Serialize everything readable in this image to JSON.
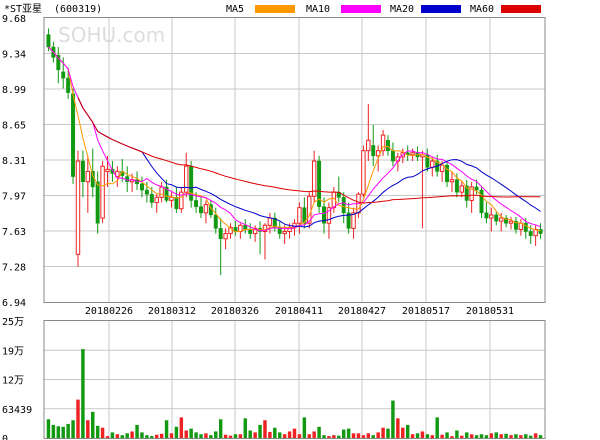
{
  "title": "*ST亚星",
  "code": "(600319)",
  "watermark": "SOHU.com",
  "legend": [
    {
      "name": "MA5",
      "color": "#FF9900"
    },
    {
      "name": "MA10",
      "color": "#FF00FF"
    },
    {
      "name": "MA20",
      "color": "#0000CC"
    },
    {
      "name": "MA60",
      "color": "#DD0000"
    }
  ],
  "price_axis": {
    "labels": [
      "9.68",
      "9.34",
      "8.99",
      "8.65",
      "8.31",
      "7.97",
      "7.63",
      "7.28",
      "6.94"
    ]
  },
  "volume_axis": {
    "labels": [
      "25万",
      "19万",
      "12万",
      "63439",
      "0"
    ]
  },
  "date_labels": [
    "20180226",
    "20180312",
    "20180326",
    "20180411",
    "20180427",
    "20180517",
    "20180531"
  ],
  "colors": {
    "up": "#EE2222",
    "down": "#119911",
    "grid": "#C8C8C8",
    "frame": "#888888"
  },
  "chart_data": {
    "type": "candlestick",
    "ylim": [
      6.94,
      9.68
    ],
    "volume_ylim": [
      0,
      250000
    ],
    "ohlc": [
      [
        9.52,
        9.58,
        9.36,
        9.4
      ],
      [
        9.4,
        9.45,
        9.25,
        9.3
      ],
      [
        9.32,
        9.4,
        9.05,
        9.18
      ],
      [
        9.16,
        9.3,
        9.0,
        9.1
      ],
      [
        9.1,
        9.2,
        8.9,
        8.96
      ],
      [
        8.95,
        9.0,
        8.08,
        8.15
      ],
      [
        7.4,
        8.4,
        7.28,
        8.3
      ],
      [
        8.3,
        8.4,
        7.95,
        8.1
      ],
      [
        8.1,
        8.35,
        7.8,
        8.2
      ],
      [
        8.2,
        8.42,
        7.95,
        8.05
      ],
      [
        8.1,
        8.2,
        7.6,
        7.7
      ],
      [
        7.75,
        8.3,
        7.7,
        8.25
      ],
      [
        8.2,
        8.35,
        8.05,
        8.22
      ],
      [
        8.22,
        8.3,
        8.1,
        8.18
      ],
      [
        8.15,
        8.25,
        8.05,
        8.2
      ],
      [
        8.2,
        8.32,
        8.1,
        8.16
      ],
      [
        8.15,
        8.25,
        8.0,
        8.1
      ],
      [
        8.1,
        8.18,
        8.0,
        8.12
      ],
      [
        8.12,
        8.2,
        8.02,
        8.08
      ],
      [
        8.08,
        8.15,
        7.95,
        8.02
      ],
      [
        8.02,
        8.1,
        7.9,
        7.98
      ],
      [
        7.98,
        8.05,
        7.85,
        7.9
      ],
      [
        7.9,
        7.98,
        7.8,
        7.95
      ],
      [
        7.95,
        8.1,
        7.9,
        8.05
      ],
      [
        8.05,
        8.12,
        7.9,
        7.92
      ],
      [
        7.92,
        8.0,
        7.85,
        7.95
      ],
      [
        7.95,
        8.05,
        7.8,
        7.84
      ],
      [
        7.84,
        8.05,
        7.8,
        8.0
      ],
      [
        8.0,
        8.38,
        7.95,
        8.25
      ],
      [
        8.25,
        8.3,
        7.85,
        7.92
      ],
      [
        7.92,
        8.0,
        7.8,
        7.86
      ],
      [
        7.86,
        7.95,
        7.75,
        7.8
      ],
      [
        7.8,
        7.92,
        7.7,
        7.88
      ],
      [
        7.88,
        7.92,
        7.75,
        7.78
      ],
      [
        7.78,
        7.85,
        7.6,
        7.65
      ],
      [
        7.65,
        7.75,
        7.2,
        7.55
      ],
      [
        7.55,
        7.65,
        7.45,
        7.6
      ],
      [
        7.6,
        7.7,
        7.55,
        7.66
      ],
      [
        7.66,
        7.72,
        7.58,
        7.62
      ],
      [
        7.62,
        7.7,
        7.55,
        7.68
      ],
      [
        7.68,
        7.74,
        7.6,
        7.64
      ],
      [
        7.64,
        7.7,
        7.55,
        7.6
      ],
      [
        7.6,
        7.68,
        7.52,
        7.65
      ],
      [
        7.65,
        7.72,
        7.4,
        7.62
      ],
      [
        7.62,
        7.7,
        7.35,
        7.68
      ],
      [
        7.68,
        7.8,
        7.6,
        7.75
      ],
      [
        7.75,
        7.8,
        7.62,
        7.66
      ],
      [
        7.66,
        7.72,
        7.55,
        7.6
      ],
      [
        7.6,
        7.68,
        7.5,
        7.62
      ],
      [
        7.62,
        7.7,
        7.55,
        7.66
      ],
      [
        7.66,
        7.74,
        7.58,
        7.7
      ],
      [
        7.7,
        7.9,
        7.6,
        7.85
      ],
      [
        7.85,
        7.95,
        7.65,
        7.7
      ],
      [
        7.7,
        8.0,
        7.65,
        7.96
      ],
      [
        7.96,
        8.4,
        7.9,
        8.3
      ],
      [
        8.3,
        8.35,
        7.8,
        7.86
      ],
      [
        7.86,
        7.95,
        7.6,
        7.7
      ],
      [
        7.7,
        7.9,
        7.55,
        7.85
      ],
      [
        7.85,
        8.05,
        7.8,
        8.0
      ],
      [
        8.0,
        8.15,
        7.9,
        7.95
      ],
      [
        7.95,
        8.0,
        7.7,
        7.8
      ],
      [
        7.8,
        7.9,
        7.6,
        7.65
      ],
      [
        7.65,
        7.85,
        7.55,
        7.8
      ],
      [
        7.8,
        8.0,
        7.75,
        7.98
      ],
      [
        7.98,
        8.45,
        7.95,
        8.4
      ],
      [
        8.4,
        8.85,
        8.3,
        8.5
      ],
      [
        8.45,
        8.65,
        8.25,
        8.35
      ],
      [
        8.35,
        8.45,
        8.2,
        8.4
      ],
      [
        8.4,
        8.6,
        8.35,
        8.55
      ],
      [
        8.5,
        8.55,
        8.35,
        8.4
      ],
      [
        8.4,
        8.48,
        8.25,
        8.3
      ],
      [
        8.3,
        8.38,
        8.2,
        8.34
      ],
      [
        8.34,
        8.42,
        8.28,
        8.38
      ],
      [
        8.38,
        8.45,
        8.3,
        8.36
      ],
      [
        8.36,
        8.42,
        8.3,
        8.38
      ],
      [
        8.38,
        8.44,
        8.3,
        8.34
      ],
      [
        8.34,
        8.4,
        7.65,
        8.36
      ],
      [
        8.36,
        8.42,
        8.2,
        8.24
      ],
      [
        8.24,
        8.34,
        8.15,
        8.3
      ],
      [
        8.3,
        8.36,
        8.15,
        8.2
      ],
      [
        8.2,
        8.3,
        8.1,
        8.26
      ],
      [
        8.26,
        8.3,
        8.05,
        8.1
      ],
      [
        8.1,
        8.2,
        8.0,
        8.12
      ],
      [
        8.12,
        8.18,
        7.95,
        8.0
      ],
      [
        8.0,
        8.1,
        7.95,
        8.06
      ],
      [
        8.06,
        8.12,
        7.85,
        7.92
      ],
      [
        7.92,
        8.1,
        7.8,
        8.05
      ],
      [
        8.05,
        8.12,
        7.98,
        8.02
      ],
      [
        8.02,
        8.06,
        7.75,
        7.8
      ],
      [
        7.8,
        7.9,
        7.7,
        7.75
      ],
      [
        7.75,
        7.85,
        7.62,
        7.78
      ],
      [
        7.78,
        7.82,
        7.68,
        7.72
      ],
      [
        7.72,
        7.8,
        7.62,
        7.75
      ],
      [
        7.75,
        7.78,
        7.66,
        7.7
      ],
      [
        7.7,
        7.76,
        7.64,
        7.72
      ],
      [
        7.72,
        7.76,
        7.6,
        7.64
      ],
      [
        7.64,
        7.74,
        7.58,
        7.7
      ],
      [
        7.7,
        7.75,
        7.55,
        7.62
      ],
      [
        7.62,
        7.68,
        7.5,
        7.58
      ],
      [
        7.58,
        7.68,
        7.48,
        7.64
      ],
      [
        7.64,
        7.7,
        7.55,
        7.6
      ]
    ],
    "volume": [
      40000,
      28000,
      25000,
      24000,
      30000,
      38000,
      82000,
      190000,
      38000,
      56000,
      26000,
      22000,
      4000,
      12000,
      8000,
      6000,
      10000,
      14000,
      28000,
      12000,
      6000,
      4000,
      7000,
      9000,
      38000,
      10000,
      24000,
      44000,
      16000,
      20000,
      12000,
      8000,
      10000,
      6000,
      14000,
      40000,
      7000,
      5000,
      8000,
      8000,
      42000,
      16000,
      12000,
      28000,
      38000,
      13000,
      22000,
      12000,
      8000,
      14000,
      20000,
      8000,
      44000,
      8000,
      14000,
      24000,
      6000,
      4000,
      6000,
      5000,
      18000,
      20000,
      10000,
      10000,
      6000,
      10000,
      6000,
      12000,
      22000,
      20000,
      80000,
      42000,
      22000,
      28000,
      8000,
      10000,
      14000,
      8000,
      6000,
      44000,
      7000,
      12000,
      4000,
      16000,
      5000,
      12000,
      8000,
      6000,
      8000,
      6000,
      10000,
      12000,
      8000,
      9000,
      6000,
      8000,
      6000,
      8000,
      5000,
      10000,
      6000
    ]
  }
}
